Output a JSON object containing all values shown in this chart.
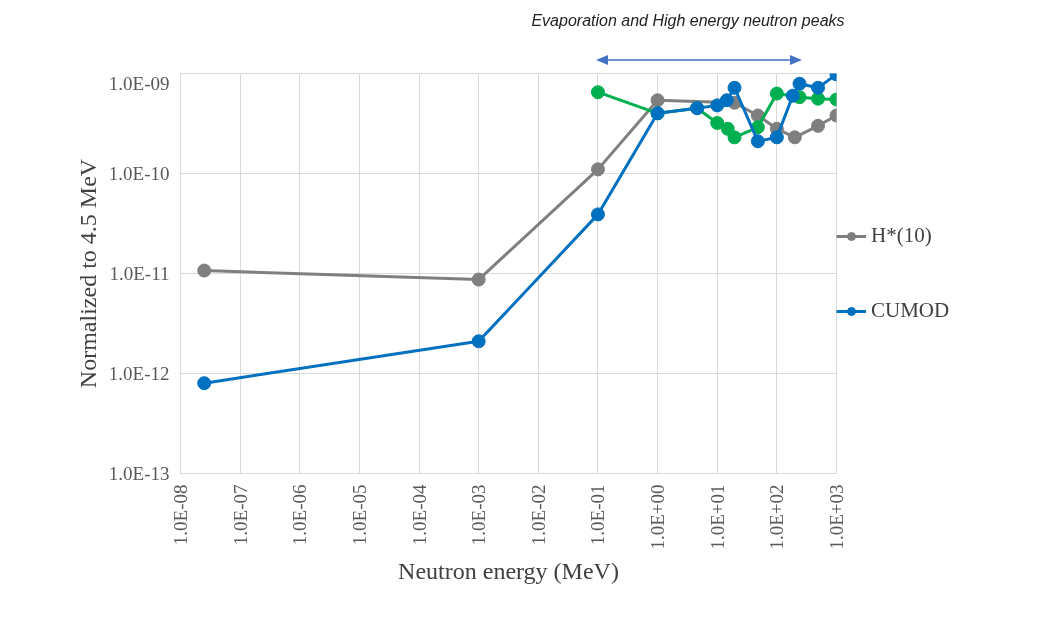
{
  "chart_data": {
    "type": "line",
    "xlabel": "Neutron energy (MeV)",
    "ylabel": "Normalized to 4.5 MeV",
    "annotations": [
      "Evaporation and High energy neutron peaks"
    ],
    "log": "xy",
    "grid": true,
    "legend": "right",
    "marker": "circle",
    "line_style": "solid",
    "xlim": [
      1e-08,
      1000
    ],
    "ylim": [
      1e-13,
      1e-09
    ],
    "xticks": [
      {
        "value": 1e-08,
        "label": "1.0E-08"
      },
      {
        "value": 1e-07,
        "label": "1.0E-07"
      },
      {
        "value": 1e-06,
        "label": "1.0E-06"
      },
      {
        "value": 1e-05,
        "label": "1.0E-05"
      },
      {
        "value": 0.0001,
        "label": "1.0E-04"
      },
      {
        "value": 0.001,
        "label": "1.0E-03"
      },
      {
        "value": 0.01,
        "label": "1.0E-02"
      },
      {
        "value": 0.1,
        "label": "1.0E-01"
      },
      {
        "value": 1,
        "label": "1.0E+00"
      },
      {
        "value": 10,
        "label": "1.0E+01"
      },
      {
        "value": 100,
        "label": "1.0E+02"
      },
      {
        "value": 1000,
        "label": "1.0E+03"
      }
    ],
    "yticks": [
      {
        "value": 1e-13,
        "label": "1.0E-13"
      },
      {
        "value": 1e-12,
        "label": "1.0E-12"
      },
      {
        "value": 1e-11,
        "label": "1.0E-11"
      },
      {
        "value": 1e-10,
        "label": "1.0E-10"
      },
      {
        "value": 1e-09,
        "label": "1.0E-09"
      }
    ],
    "series": [
      {
        "name": "H*(10)",
        "color": "#7f7f7f",
        "x": [
          2.5e-08,
          0.001,
          0.1,
          1,
          19.5,
          48,
          100,
          200,
          490,
          1000
        ],
        "values": [
          1.07e-11,
          8.7e-12,
          1.1e-10,
          5.4e-10,
          5.1e-10,
          3.8e-10,
          2.8e-10,
          2.3e-10,
          3e-10,
          3.8e-10
        ]
      },
      {
        "color": "#00b050",
        "x": [
          0.1,
          1,
          4.6,
          10,
          15,
          19.5,
          48,
          100,
          240,
          490,
          1000
        ],
        "values": [
          6.5e-10,
          4e-10,
          4.5e-10,
          3.2e-10,
          2.8e-10,
          2.3e-10,
          2.9e-10,
          6.3e-10,
          5.8e-10,
          5.6e-10,
          5.5e-10
        ]
      },
      {
        "name": "CUMOD",
        "color": "#0070c0",
        "x": [
          2.5e-08,
          0.001,
          0.1,
          1,
          4.6,
          10,
          14.5,
          19.5,
          48,
          100,
          185,
          240,
          490,
          1000
        ],
        "values": [
          8e-13,
          2.1e-12,
          3.9e-11,
          4e-10,
          4.5e-10,
          4.8e-10,
          5.4e-10,
          7.2e-10,
          2.1e-10,
          2.3e-10,
          6e-10,
          7.9e-10,
          7.2e-10,
          9.8e-10
        ]
      }
    ]
  }
}
